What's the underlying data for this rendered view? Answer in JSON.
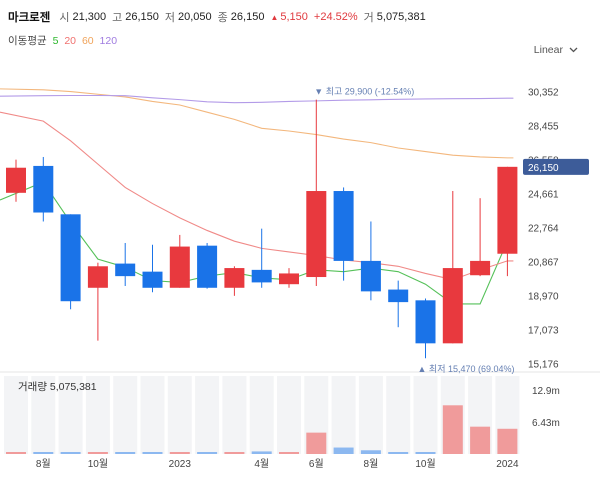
{
  "header": {
    "name": "마크로젠",
    "open_label": "시",
    "open": "21,300",
    "high_label": "고",
    "high": "26,150",
    "low_label": "저",
    "low": "20,050",
    "close_label": "종",
    "close": "26,150",
    "change": "5,150",
    "change_pct": "+24.52%",
    "volume_label": "거",
    "volume": "5,075,381"
  },
  "ma_legend": {
    "title": "이동평균",
    "periods": [
      "5",
      "20",
      "60",
      "120"
    ],
    "colors": [
      "#2eb82e",
      "#f0706e",
      "#f0a35a",
      "#a07ce0"
    ]
  },
  "scale_dropdown": {
    "value": "Linear",
    "icon": "chevron-down-icon"
  },
  "annotations": {
    "high": "최고 29,900 (-12.54%)",
    "low": "최저 15,470 (69.04%)"
  },
  "current_price": {
    "label": "26,150",
    "value": 26150
  },
  "volume_panel": {
    "label": "거래량",
    "value": "5,075,381"
  },
  "colors": {
    "up": "#e8393e",
    "down": "#1a73e8",
    "price_tag": "#3d5c99"
  },
  "chart_data": {
    "type": "candlestick",
    "price_axis": {
      "ticks": [
        30352,
        28455,
        26558,
        24661,
        22764,
        20867,
        18970,
        17073,
        15176
      ],
      "tick_labels": [
        "30,352",
        "28,455",
        "26,558",
        "24,661",
        "22,764",
        "20,867",
        "18,970",
        "17,073",
        "15,176"
      ],
      "range": [
        14700,
        32000
      ]
    },
    "x_labels": [
      "8월",
      "10월",
      "2023",
      "4월",
      "6월",
      "8월",
      "10월",
      "2024"
    ],
    "x_label_bar_index": [
      1,
      3,
      6,
      9,
      11,
      13,
      15,
      18
    ],
    "candles": [
      {
        "o": 24700,
        "h": 26550,
        "l": 24200,
        "c": 26100
      },
      {
        "o": 26200,
        "h": 26700,
        "l": 23100,
        "c": 23600
      },
      {
        "o": 23500,
        "h": 23500,
        "l": 18200,
        "c": 18650
      },
      {
        "o": 19400,
        "h": 20800,
        "l": 16450,
        "c": 20600
      },
      {
        "o": 20750,
        "h": 21900,
        "l": 19500,
        "c": 20050
      },
      {
        "o": 20300,
        "h": 21800,
        "l": 19150,
        "c": 19400
      },
      {
        "o": 19400,
        "h": 22350,
        "l": 19400,
        "c": 21700
      },
      {
        "o": 21750,
        "h": 21900,
        "l": 19350,
        "c": 19400
      },
      {
        "o": 19400,
        "h": 20600,
        "l": 18950,
        "c": 20500
      },
      {
        "o": 20400,
        "h": 22700,
        "l": 19400,
        "c": 19700
      },
      {
        "o": 19600,
        "h": 20500,
        "l": 19400,
        "c": 20200
      },
      {
        "o": 20000,
        "h": 29900,
        "l": 19500,
        "c": 24800
      },
      {
        "o": 24800,
        "h": 25000,
        "l": 19800,
        "c": 20900
      },
      {
        "o": 20900,
        "h": 23100,
        "l": 18700,
        "c": 19200
      },
      {
        "o": 19300,
        "h": 19800,
        "l": 17200,
        "c": 18600
      },
      {
        "o": 18700,
        "h": 18800,
        "l": 15470,
        "c": 16300
      },
      {
        "o": 16300,
        "h": 24800,
        "l": 16300,
        "c": 20500
      },
      {
        "o": 20100,
        "h": 24400,
        "l": 20050,
        "c": 20900
      },
      {
        "o": 21300,
        "h": 26150,
        "l": 20050,
        "c": 26150
      }
    ],
    "ma": {
      "5": [
        24300,
        25300,
        23050,
        21000,
        20550,
        19800,
        19700,
        20050,
        20250,
        19950,
        19850,
        20400,
        20300,
        20500,
        20300,
        19600,
        18500,
        18500,
        22000
      ],
      "20": [
        29200,
        28700,
        27600,
        26300,
        25000,
        24100,
        23300,
        22600,
        22000,
        21600,
        21400,
        21200,
        20950,
        20800,
        20600,
        20200,
        19850,
        20400,
        20900
      ],
      "60": [
        30500,
        30450,
        30350,
        30200,
        30050,
        29800,
        29600,
        29200,
        28800,
        28300,
        28150,
        27950,
        27700,
        27500,
        27200,
        27000,
        26800,
        26700,
        26650
      ],
      "120": [
        30090,
        30120,
        30130,
        30130,
        30120,
        30000,
        29900,
        29780,
        29730,
        29750,
        29800,
        29830,
        29870,
        29890,
        29920,
        29940,
        29950,
        29960,
        29980
      ]
    },
    "volume_axis": {
      "tick_labels": [
        "12.9m",
        "6.43m"
      ],
      "ticks": [
        12900000,
        6430000
      ],
      "range": [
        0,
        16500000
      ]
    },
    "volumes": [
      90000,
      150000,
      190000,
      120000,
      80000,
      90000,
      130000,
      90000,
      180000,
      520000,
      110000,
      4300000,
      1300000,
      750000,
      300000,
      250000,
      9800000,
      5500000,
      5075381
    ]
  }
}
